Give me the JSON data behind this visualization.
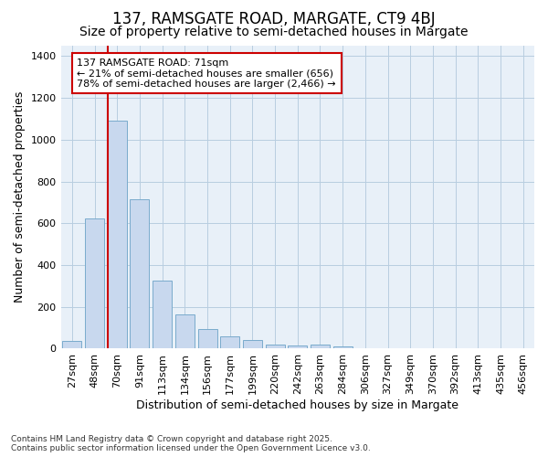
{
  "title1": "137, RAMSGATE ROAD, MARGATE, CT9 4BJ",
  "title2": "Size of property relative to semi-detached houses in Margate",
  "xlabel": "Distribution of semi-detached houses by size in Margate",
  "ylabel": "Number of semi-detached properties",
  "categories": [
    "27sqm",
    "48sqm",
    "70sqm",
    "91sqm",
    "113sqm",
    "134sqm",
    "156sqm",
    "177sqm",
    "199sqm",
    "220sqm",
    "242sqm",
    "263sqm",
    "284sqm",
    "306sqm",
    "327sqm",
    "349sqm",
    "370sqm",
    "392sqm",
    "413sqm",
    "435sqm",
    "456sqm"
  ],
  "values": [
    35,
    625,
    1090,
    715,
    325,
    165,
    95,
    60,
    40,
    20,
    15,
    20,
    10,
    0,
    0,
    0,
    0,
    0,
    0,
    0,
    0
  ],
  "bar_color": "#c8d8ee",
  "bar_edge_color": "#7aabcc",
  "grid_color": "#b8cde0",
  "vline_x_bar_index": 2,
  "annotation_title": "137 RAMSGATE ROAD: 71sqm",
  "annotation_line1": "← 21% of semi-detached houses are smaller (656)",
  "annotation_line2": "78% of semi-detached houses are larger (2,466) →",
  "vline_color": "#cc0000",
  "annotation_box_edge": "#cc0000",
  "footer1": "Contains HM Land Registry data © Crown copyright and database right 2025.",
  "footer2": "Contains public sector information licensed under the Open Government Licence v3.0.",
  "ylim": [
    0,
    1450
  ],
  "yticks": [
    0,
    200,
    400,
    600,
    800,
    1000,
    1200,
    1400
  ],
  "background_color": "#e8f0f8",
  "title1_fontsize": 12,
  "title2_fontsize": 10,
  "xlabel_fontsize": 9,
  "ylabel_fontsize": 9,
  "tick_fontsize": 8,
  "annot_fontsize": 8
}
